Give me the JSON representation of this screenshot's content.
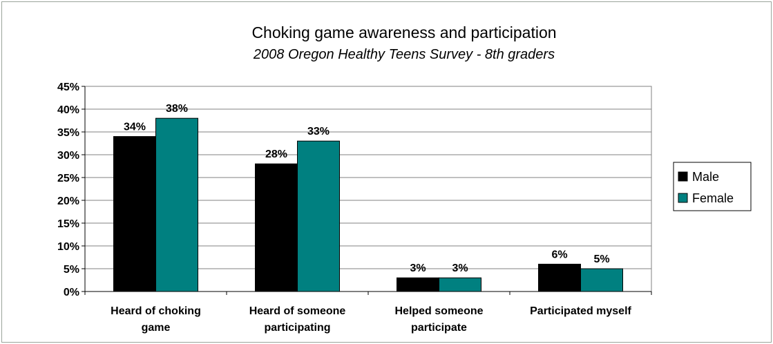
{
  "chart_data": {
    "type": "bar",
    "title": "Choking game awareness and participation",
    "subtitle": "2008 Oregon Healthy Teens Survey - 8th graders",
    "categories": [
      [
        "Heard of choking",
        "game"
      ],
      [
        "Heard of someone",
        "participating"
      ],
      [
        "Helped someone",
        "participate"
      ],
      [
        "Participated myself"
      ]
    ],
    "series": [
      {
        "name": "Male",
        "color": "#000000",
        "values": [
          34,
          28,
          3,
          6
        ],
        "labels": [
          "34%",
          "28%",
          "3%",
          "6%"
        ]
      },
      {
        "name": "Female",
        "color": "#008080",
        "values": [
          38,
          33,
          3,
          5
        ],
        "labels": [
          "38%",
          "33%",
          "3%",
          "5%"
        ]
      }
    ],
    "ylim": [
      0,
      45
    ],
    "yticks": [
      0,
      5,
      10,
      15,
      20,
      25,
      30,
      35,
      40,
      45
    ],
    "ytick_labels": [
      "0%",
      "5%",
      "10%",
      "15%",
      "20%",
      "25%",
      "30%",
      "35%",
      "40%",
      "45%"
    ],
    "grid": true,
    "legend_position": "right",
    "xlabel": "",
    "ylabel": ""
  }
}
